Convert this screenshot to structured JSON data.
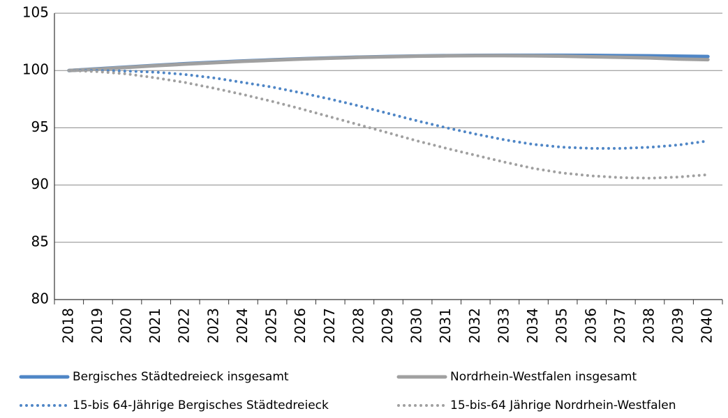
{
  "chart_data": {
    "type": "line",
    "categories": [
      "2018",
      "2019",
      "2020",
      "2021",
      "2022",
      "2023",
      "2024",
      "2025",
      "2026",
      "2027",
      "2028",
      "2029",
      "2030",
      "2031",
      "2032",
      "2033",
      "2034",
      "2035",
      "2036",
      "2037",
      "2038",
      "2039",
      "2040"
    ],
    "series": [
      {
        "name": "Bergisches Städtedreieck insgesamt",
        "color": "#4f86c6",
        "style": "solid",
        "values": [
          100,
          100.15,
          100.3,
          100.45,
          100.6,
          100.72,
          100.83,
          100.93,
          101.02,
          101.1,
          101.17,
          101.22,
          101.27,
          101.3,
          101.32,
          101.33,
          101.33,
          101.33,
          101.32,
          101.3,
          101.28,
          101.25,
          101.22
        ]
      },
      {
        "name": "Nordrhein-Westfalen insgesamt",
        "color": "#a0a0a0",
        "style": "solid",
        "values": [
          100,
          100.12,
          100.27,
          100.42,
          100.56,
          100.68,
          100.8,
          100.9,
          101.0,
          101.08,
          101.15,
          101.2,
          101.25,
          101.28,
          101.3,
          101.3,
          101.28,
          101.25,
          101.2,
          101.15,
          101.1,
          101.0,
          100.95
        ]
      },
      {
        "name": "15-bis 64-Jährige Bergisches Städtedreieck",
        "color": "#4f86c6",
        "style": "dotted",
        "values": [
          100,
          100.0,
          99.95,
          99.85,
          99.65,
          99.35,
          98.95,
          98.55,
          98.05,
          97.5,
          96.9,
          96.25,
          95.6,
          95.0,
          94.45,
          93.95,
          93.55,
          93.3,
          93.2,
          93.2,
          93.3,
          93.5,
          93.85
        ]
      },
      {
        "name": "15-bis-64 Jährige Nordrhein-Westfalen",
        "color": "#a0a0a0",
        "style": "dotted",
        "values": [
          100,
          99.9,
          99.7,
          99.35,
          98.95,
          98.45,
          97.9,
          97.3,
          96.65,
          95.95,
          95.25,
          94.55,
          93.85,
          93.2,
          92.6,
          92.0,
          91.45,
          91.05,
          90.8,
          90.65,
          90.6,
          90.7,
          90.9
        ]
      }
    ],
    "ylim": [
      80,
      105
    ],
    "yticks": [
      80,
      85,
      90,
      95,
      100,
      105
    ],
    "grid": true
  }
}
